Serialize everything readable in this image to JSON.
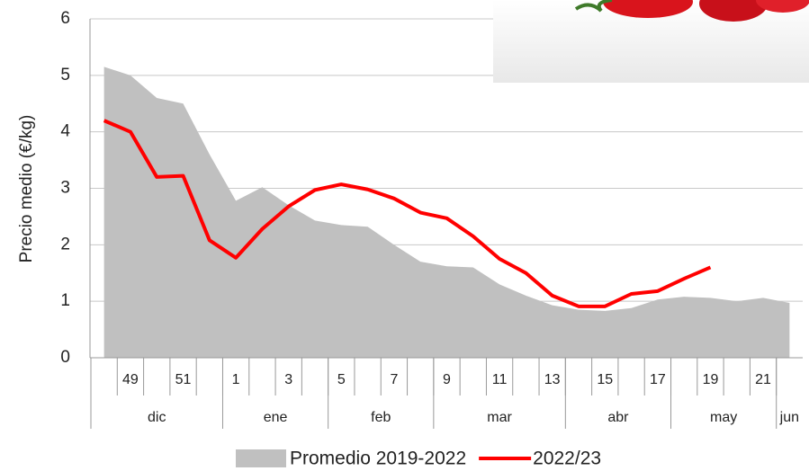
{
  "chart_data": {
    "type": "area_line",
    "ylabel": "Precio medio (€/kg)",
    "categories": [
      null,
      "49",
      null,
      "51",
      null,
      "1",
      null,
      "3",
      null,
      "5",
      null,
      "7",
      null,
      "9",
      null,
      "11",
      null,
      "13",
      null,
      "15",
      null,
      "17",
      null,
      "19",
      null,
      "21",
      null
    ],
    "month_groups": [
      {
        "label": "dic",
        "weeks": 5
      },
      {
        "label": "ene",
        "weeks": 4
      },
      {
        "label": "feb",
        "weeks": 4
      },
      {
        "label": "mar",
        "weeks": 5
      },
      {
        "label": "abr",
        "weeks": 4
      },
      {
        "label": "may",
        "weeks": 4
      },
      {
        "label": "jun",
        "weeks": 1
      }
    ],
    "series": [
      {
        "name": "Promedio 2019-2022",
        "kind": "area",
        "color": "#c0c0c0",
        "values": [
          5.15,
          5.0,
          4.6,
          4.5,
          3.6,
          2.78,
          3.02,
          2.7,
          2.43,
          2.35,
          2.32,
          2.0,
          1.7,
          1.62,
          1.6,
          1.3,
          1.1,
          0.93,
          0.85,
          0.83,
          0.88,
          1.03,
          1.08,
          1.06,
          1.0,
          1.06,
          0.97
        ]
      },
      {
        "name": "2022/23",
        "kind": "line",
        "color": "#ff0000",
        "values": [
          4.2,
          4.0,
          3.2,
          3.22,
          2.08,
          1.77,
          2.28,
          2.68,
          2.97,
          3.07,
          2.98,
          2.82,
          2.57,
          2.47,
          2.15,
          1.75,
          1.5,
          1.1,
          0.91,
          0.91,
          1.13,
          1.18,
          1.4,
          1.6,
          null,
          null,
          null
        ]
      }
    ],
    "ylim": [
      0,
      6
    ],
    "yticks": [
      0,
      1,
      2,
      3,
      4,
      5,
      6
    ],
    "grid": true,
    "legend": "bottom"
  }
}
